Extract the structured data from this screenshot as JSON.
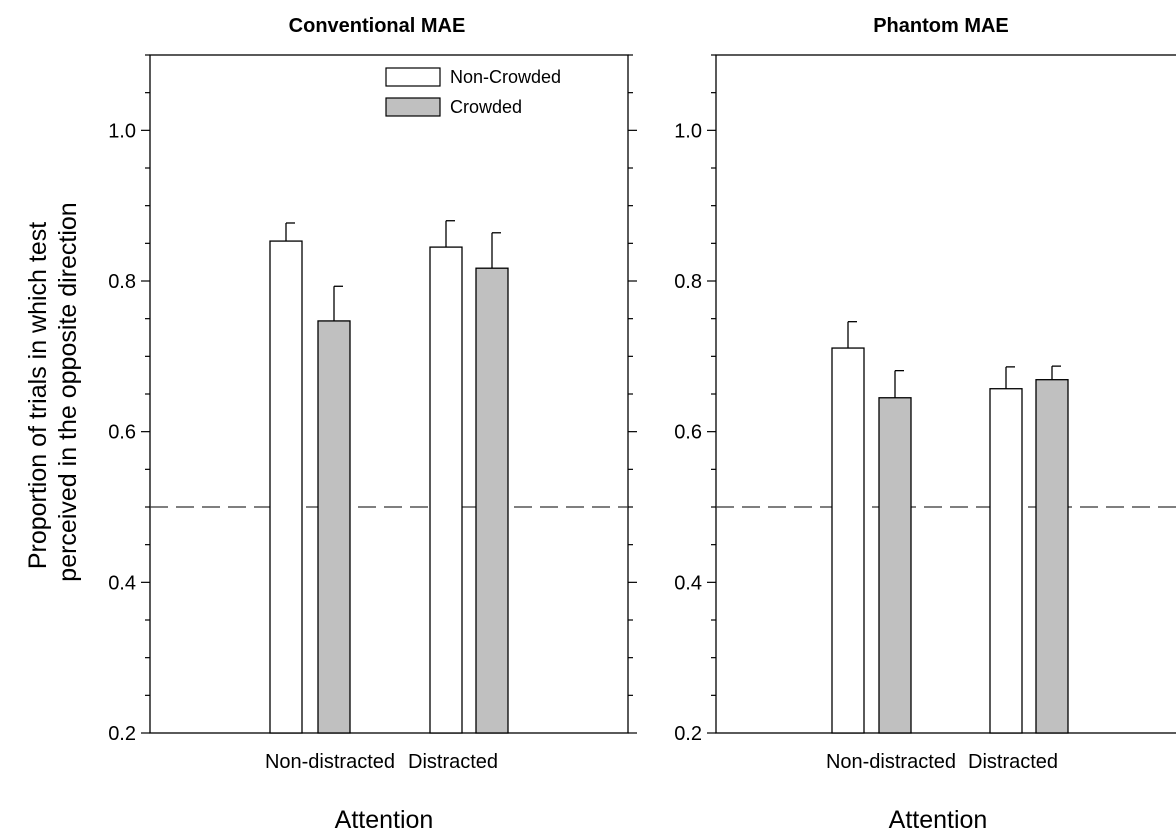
{
  "ylabel_lines": [
    "Proportion of trials in which test",
    "perceived in the opposite direction"
  ],
  "legend": {
    "entries": [
      "Non-Crowded",
      "Crowded"
    ],
    "placement": "top-right"
  },
  "colors": {
    "non_crowded": "#ffffff",
    "crowded": "#c0c0c0",
    "outline": "#000000"
  },
  "chart_data": [
    {
      "type": "bar",
      "title": "Conventional MAE",
      "xlabel": "Attention",
      "categories": [
        "Non-distracted",
        "Distracted"
      ],
      "series": [
        {
          "name": "Non-Crowded",
          "values": [
            0.853,
            0.845
          ],
          "errors": [
            0.024,
            0.035
          ]
        },
        {
          "name": "Crowded",
          "values": [
            0.747,
            0.817
          ],
          "errors": [
            0.046,
            0.047
          ]
        }
      ],
      "ylim": [
        0.2,
        1.1
      ],
      "yticks": [
        0.2,
        0.4,
        0.6,
        0.8,
        1.0
      ],
      "reference_line": 0.5,
      "grid": false,
      "show_legend": true
    },
    {
      "type": "bar",
      "title": "Phantom MAE",
      "xlabel": "Attention",
      "categories": [
        "Non-distracted",
        "Distracted"
      ],
      "series": [
        {
          "name": "Non-Crowded",
          "values": [
            0.711,
            0.657
          ],
          "errors": [
            0.035,
            0.029
          ]
        },
        {
          "name": "Crowded",
          "values": [
            0.645,
            0.669
          ],
          "errors": [
            0.036,
            0.018
          ]
        }
      ],
      "ylim": [
        0.2,
        1.1
      ],
      "yticks": [
        0.2,
        0.4,
        0.6,
        0.8,
        1.0
      ],
      "reference_line": 0.5,
      "grid": false,
      "show_legend": false
    }
  ]
}
